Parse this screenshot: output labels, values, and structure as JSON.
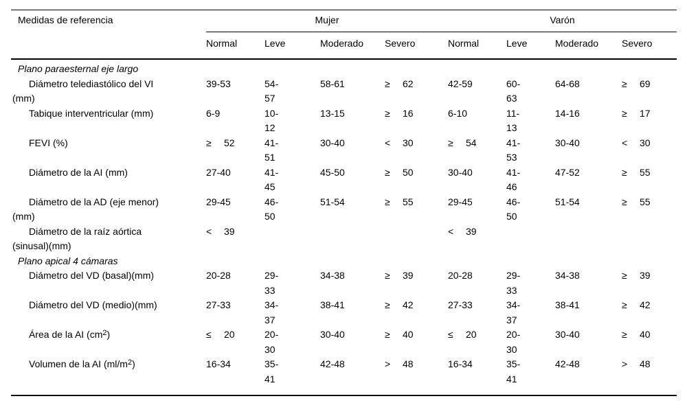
{
  "colors": {
    "background": "#ffffff",
    "text": "#000000",
    "rule": "#000000"
  },
  "table": {
    "title_column": "Medidas de referencia",
    "groups": [
      {
        "label": "Mujer",
        "columns": [
          "Normal",
          "Leve",
          "Moderado",
          "Severo"
        ]
      },
      {
        "label": "Varón",
        "columns": [
          "Normal",
          "Leve",
          "Moderado",
          "Severo"
        ]
      }
    ],
    "rows": [
      {
        "type": "section",
        "label": "Plano paraesternal eje largo"
      },
      {
        "type": "data",
        "label": "Diámetro telediastólico del VI (mm)",
        "mujer": [
          "39-53",
          "54-57",
          "58-61",
          "≥ 62"
        ],
        "varon": [
          "42-59",
          "60-63",
          "64-68",
          "≥ 69"
        ]
      },
      {
        "type": "data",
        "label": "Tabique interventricular (mm)",
        "mujer": [
          "6-9",
          "10-12",
          "13-15",
          "≥ 16"
        ],
        "varon": [
          "6-10",
          "11-13",
          "14-16",
          "≥ 17"
        ]
      },
      {
        "type": "data",
        "label": "FEVI (%)",
        "mujer": [
          "≥ 52",
          "41-51",
          "30-40",
          "< 30"
        ],
        "varon": [
          "≥ 54",
          "41-53",
          "30-40",
          "< 30"
        ]
      },
      {
        "type": "data",
        "label": "Diámetro de la AI (mm)",
        "mujer": [
          "27-40",
          "41-45",
          "45-50",
          "≥ 50"
        ],
        "varon": [
          "30-40",
          "41-46",
          "47-52",
          "≥ 55"
        ]
      },
      {
        "type": "data",
        "label": "Diámetro de la AD (eje menor) (mm)",
        "mujer": [
          "29-45",
          "46-50",
          "51-54",
          "≥ 55"
        ],
        "varon": [
          "29-45",
          "46-50",
          "51-54",
          "≥ 55"
        ]
      },
      {
        "type": "data",
        "label": "Diámetro de la raíz aórtica (sinusal)(mm)",
        "mujer": [
          "< 39",
          "",
          "",
          ""
        ],
        "varon": [
          "< 39",
          "",
          "",
          ""
        ]
      },
      {
        "type": "section",
        "label": "Plano apical 4 cámaras"
      },
      {
        "type": "data",
        "label": "Diámetro del VD (basal)(mm)",
        "mujer": [
          "20-28",
          "29-33",
          "34-38",
          "≥ 39"
        ],
        "varon": [
          "20-28",
          "29-33",
          "34-38",
          "≥ 39"
        ]
      },
      {
        "type": "data",
        "label": "Diámetro del VD (medio)(mm)",
        "mujer": [
          "27-33",
          "34-37",
          "38-41",
          "≥ 42"
        ],
        "varon": [
          "27-33",
          "34-37",
          "38-41",
          "≥ 42"
        ]
      },
      {
        "type": "data",
        "label": "Área de la AI (cm²)",
        "mujer": [
          "≤ 20",
          "20-30",
          "30-40",
          "≥ 40"
        ],
        "varon": [
          "≤ 20",
          "20-30",
          "30-40",
          "≥ 40"
        ]
      },
      {
        "type": "data",
        "label": "Volumen de la AI (ml/m²)",
        "mujer": [
          "16-34",
          "35-41",
          "42-48",
          "> 48"
        ],
        "varon": [
          "16-34",
          "35-41",
          "42-48",
          "> 48"
        ]
      }
    ]
  }
}
